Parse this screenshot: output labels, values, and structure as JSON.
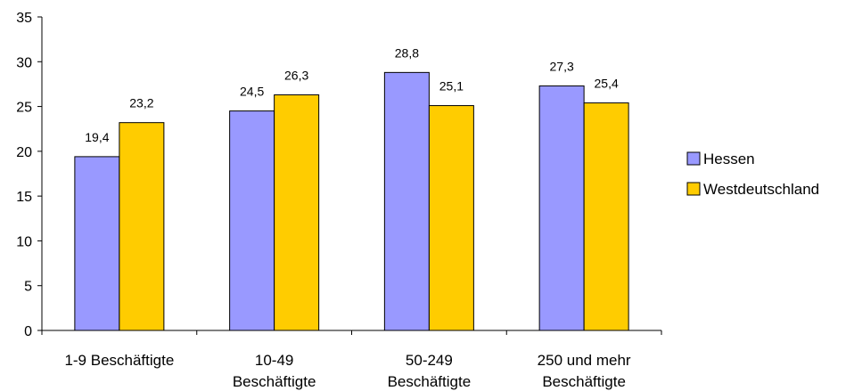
{
  "chart_data": {
    "type": "bar",
    "categories": [
      [
        "1-9 Beschäftigte"
      ],
      [
        "10-49",
        "Beschäftigte"
      ],
      [
        "50-249",
        "Beschäftigte"
      ],
      [
        "250 und mehr",
        "Beschäftigte"
      ]
    ],
    "series": [
      {
        "name": "Hessen",
        "color": "#9999ff",
        "values": [
          19.4,
          24.5,
          28.8,
          27.3
        ],
        "labels": [
          "19,4",
          "24,5",
          "28,8",
          "27,3"
        ]
      },
      {
        "name": "Westdeutschland",
        "color": "#ffcc00",
        "values": [
          23.2,
          26.3,
          25.1,
          25.4
        ],
        "labels": [
          "23,2",
          "26,3",
          "25,1",
          "25,4"
        ]
      }
    ],
    "ylim": [
      0,
      35
    ],
    "yticks": [
      0,
      5,
      10,
      15,
      20,
      25,
      30,
      35
    ],
    "grid": false,
    "legend": "right"
  }
}
